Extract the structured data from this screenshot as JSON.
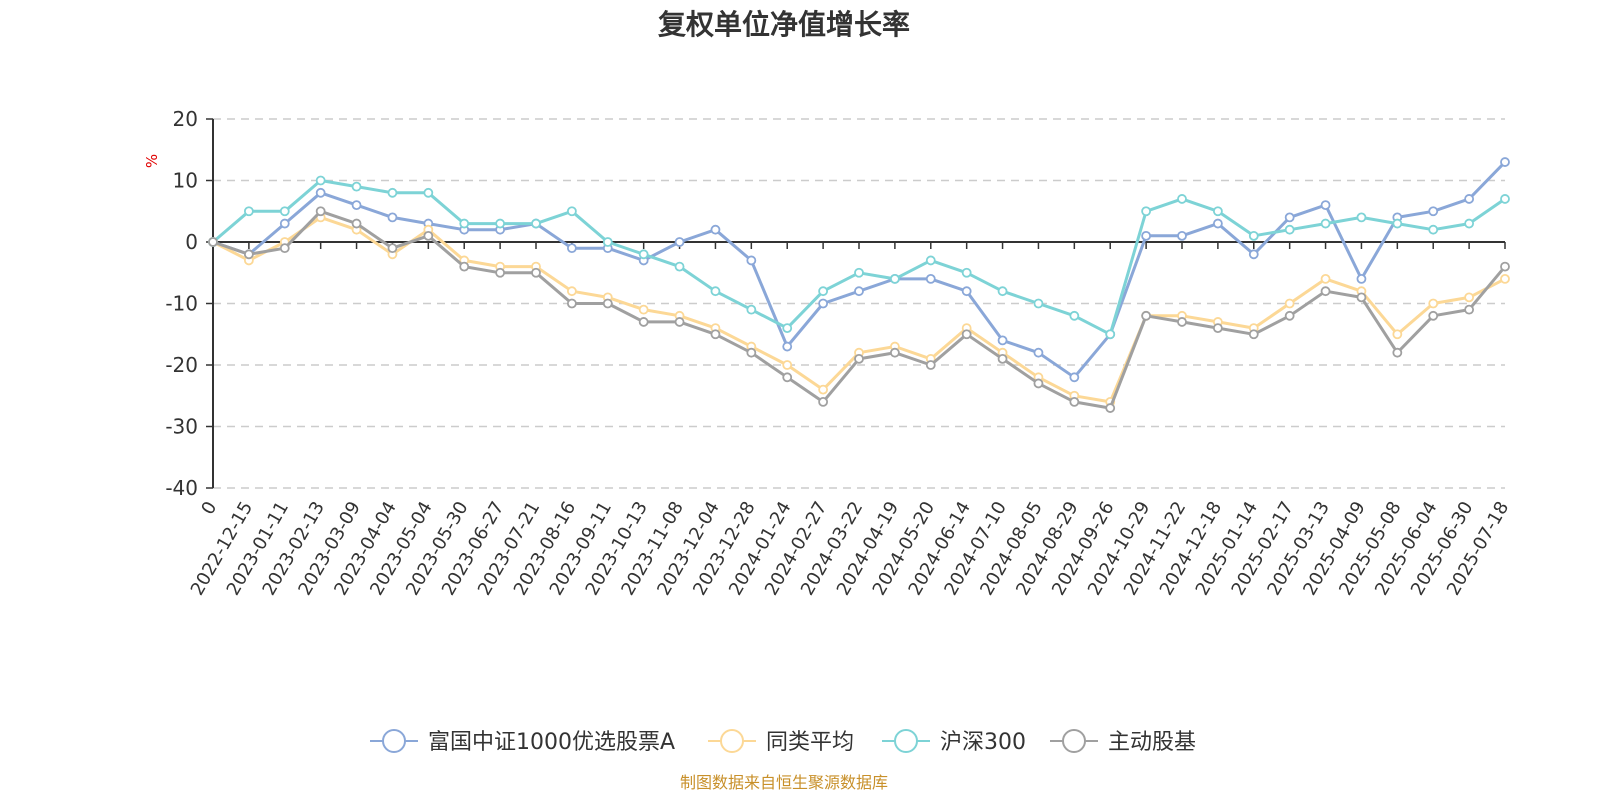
{
  "chart_data": {
    "type": "line",
    "title": "复权单位净值增长率",
    "ylabel": "%",
    "ylim": [
      -40,
      20
    ],
    "yticks": [
      20,
      10,
      0,
      -10,
      -20,
      -30,
      -40
    ],
    "grid": true,
    "legend_position": "bottom",
    "source": "制图数据来自恒生聚源数据库",
    "x": [
      "0",
      "2022-12-15",
      "2023-01-11",
      "2023-02-13",
      "2023-03-09",
      "2023-04-04",
      "2023-05-04",
      "2023-05-30",
      "2023-06-27",
      "2023-07-21",
      "2023-08-16",
      "2023-09-11",
      "2023-10-13",
      "2023-11-08",
      "2023-12-04",
      "2023-12-28",
      "2024-01-24",
      "2024-02-27",
      "2024-03-22",
      "2024-04-19",
      "2024-05-20",
      "2024-06-14",
      "2024-07-10",
      "2024-08-05",
      "2024-08-29",
      "2024-09-26",
      "2024-10-29",
      "2024-11-22",
      "2024-12-18",
      "2025-01-14",
      "2025-02-17",
      "2025-03-13",
      "2025-04-09",
      "2025-05-08",
      "2025-06-04",
      "2025-06-30",
      "2025-07-18"
    ],
    "series": [
      {
        "name": "富国中证1000优选股票A",
        "color": "#8aa7d8",
        "values": [
          0,
          -2,
          3,
          8,
          6,
          4,
          3,
          2,
          2,
          3,
          -1,
          -1,
          -3,
          0,
          2,
          -3,
          -17,
          -10,
          -8,
          -6,
          -6,
          -8,
          -16,
          -18,
          -22,
          -15,
          1,
          1,
          3,
          -2,
          4,
          6,
          -6,
          4,
          5,
          7,
          13
        ]
      },
      {
        "name": "同类平均",
        "color": "#fcd896",
        "values": [
          0,
          -3,
          0,
          4,
          2,
          -2,
          2,
          -3,
          -4,
          -4,
          -8,
          -9,
          -11,
          -12,
          -14,
          -17,
          -20,
          -24,
          -18,
          -17,
          -19,
          -14,
          -18,
          -22,
          -25,
          -26,
          -12,
          -12,
          -13,
          -14,
          -10,
          -6,
          -8,
          -15,
          -10,
          -9,
          -6
        ]
      },
      {
        "name": "沪深300",
        "color": "#7dd3d6",
        "values": [
          0,
          5,
          5,
          10,
          9,
          8,
          8,
          3,
          3,
          3,
          5,
          0,
          -2,
          -4,
          -8,
          -11,
          -14,
          -8,
          -5,
          -6,
          -3,
          -5,
          -8,
          -10,
          -12,
          -15,
          5,
          7,
          5,
          1,
          2,
          3,
          4,
          3,
          2,
          3,
          7
        ]
      },
      {
        "name": "主动股基",
        "color": "#a0a0a0",
        "values": [
          0,
          -2,
          -1,
          5,
          3,
          -1,
          1,
          -4,
          -5,
          -5,
          -10,
          -10,
          -13,
          -13,
          -15,
          -18,
          -22,
          -26,
          -19,
          -18,
          -20,
          -15,
          -19,
          -23,
          -26,
          -27,
          -12,
          -13,
          -14,
          -15,
          -12,
          -8,
          -9,
          -18,
          -12,
          -11,
          -4
        ]
      }
    ]
  }
}
